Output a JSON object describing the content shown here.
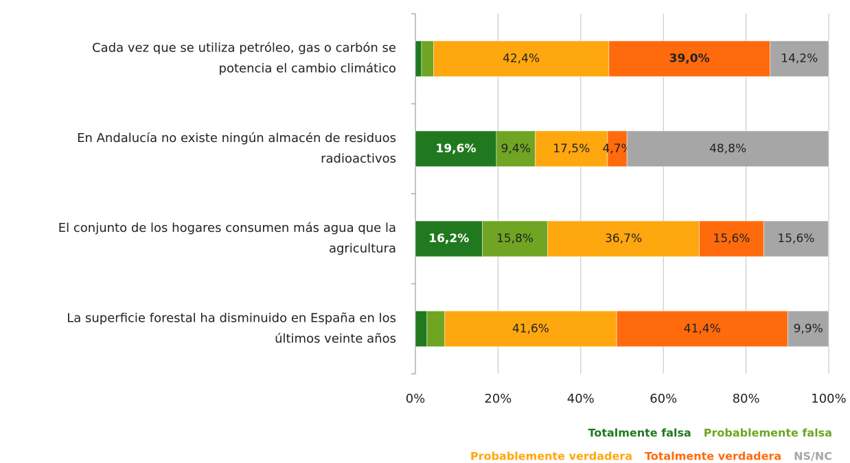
{
  "chart_data": {
    "type": "stacked-barh",
    "categories": [
      [
        "Cada vez que se utiliza  petróleo, gas o carbón se",
        "potencia el cambio  climático"
      ],
      [
        "En Andalucía no existe ningún almacén de residuos",
        "radioactivos"
      ],
      [
        "El conjunto de los hogares consumen más  agua que la",
        "agricultura"
      ],
      [
        "La superficie forestal ha disminuido en España en los",
        "últimos veinte años"
      ]
    ],
    "series": [
      {
        "name": "Totalmente falsa",
        "color": "#21791f",
        "values": [
          1.5,
          19.6,
          16.2,
          2.8
        ],
        "value_labels": [
          null,
          "19,6%",
          "16,2%",
          null
        ]
      },
      {
        "name": "Probablemente falsa",
        "color": "#6fa523",
        "values": [
          2.9,
          9.4,
          15.8,
          4.3
        ],
        "value_labels": [
          null,
          "9,4%",
          "15,8%",
          null
        ]
      },
      {
        "name": "Probablemente verdadera",
        "color": "#ffa70f",
        "values": [
          42.4,
          17.5,
          36.7,
          41.6
        ],
        "value_labels": [
          "42,4%",
          "17,5%",
          "36,7%",
          "41,6%"
        ]
      },
      {
        "name": "Totalmente verdadera",
        "color": "#ff6a0d",
        "values": [
          39.0,
          4.7,
          15.6,
          41.4
        ],
        "value_labels": [
          "39,0%",
          "4,7%",
          "15,6%",
          "41,4%"
        ]
      },
      {
        "name": "NS/NC",
        "color": "#a6a6a6",
        "values": [
          14.2,
          48.8,
          15.6,
          9.9
        ],
        "value_labels": [
          "14,2%",
          "48,8%",
          "15,6%",
          "9,9%"
        ]
      }
    ],
    "xlim": [
      0,
      100
    ],
    "xticks": [
      {
        "value": 0,
        "label": "0%"
      },
      {
        "value": 20,
        "label": "20%"
      },
      {
        "value": 40,
        "label": "40%"
      },
      {
        "value": 60,
        "label": "60%"
      },
      {
        "value": 80,
        "label": "80%"
      },
      {
        "value": 100,
        "label": "100%"
      }
    ],
    "grid": true
  }
}
